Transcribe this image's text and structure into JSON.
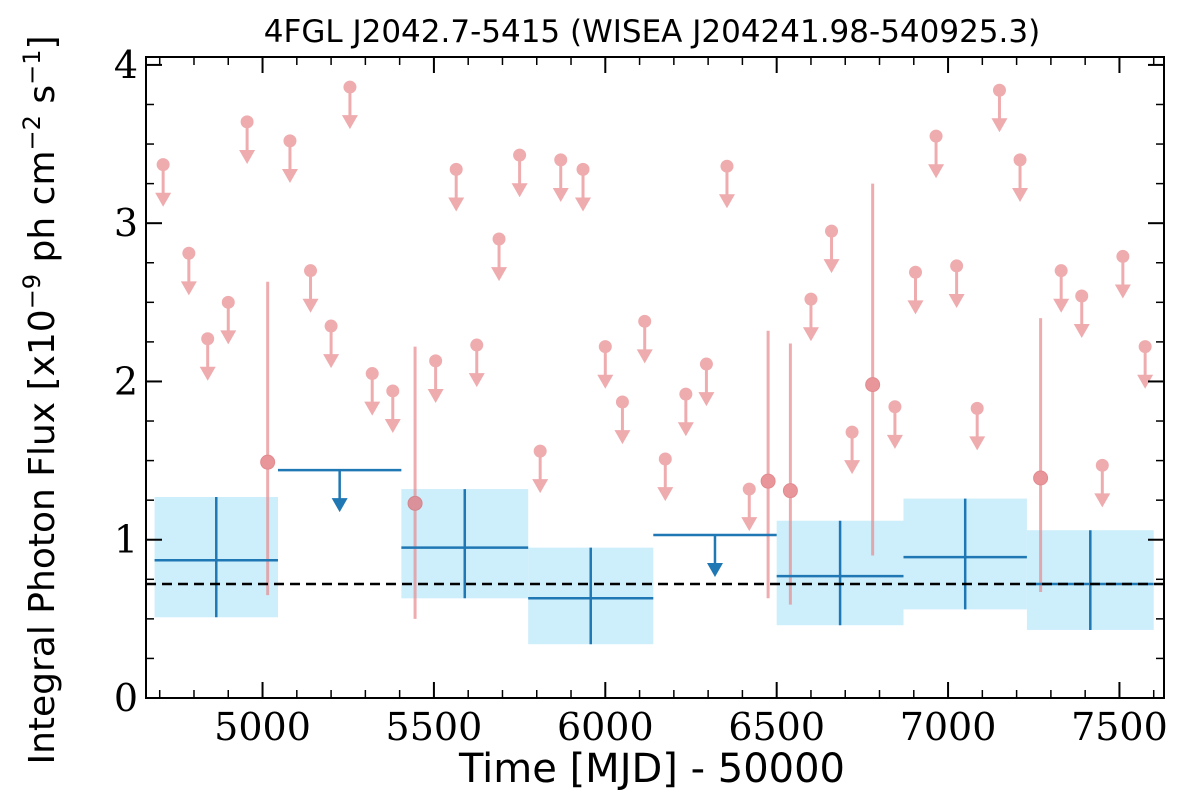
{
  "chart_data": {
    "type": "scatter",
    "title": "4FGL J2042.7-5415 (WISEA J204241.98-540925.3)",
    "xlabel": "Time [MJD] - 50000",
    "ylabel": "Integral Photon Flux [x10",
    "ylabel_exp": "−9",
    "ylabel_mid": " ph cm",
    "ylabel_exp2": "−2",
    "ylabel_end": " s",
    "ylabel_exp3": "−1",
    "ylabel_close": "]",
    "xlim": [
      4660,
      7630
    ],
    "ylim": [
      0,
      4.05
    ],
    "xticks": [
      5000,
      5500,
      6000,
      6500,
      7000,
      7500
    ],
    "yticks": [
      0,
      1,
      2,
      3,
      4
    ],
    "baseline_flux": 0.72,
    "colors": {
      "short_bins": "#e88a8e",
      "long_bins": "#1f77b4",
      "long_bins_band": "#cdeefb",
      "baseline": "#000000"
    },
    "short_bins": {
      "upper_limits": [
        {
          "x": 4710,
          "y": 3.37
        },
        {
          "x": 4785,
          "y": 2.81
        },
        {
          "x": 4840,
          "y": 2.27
        },
        {
          "x": 4900,
          "y": 2.5
        },
        {
          "x": 4955,
          "y": 3.64
        },
        {
          "x": 5080,
          "y": 3.52
        },
        {
          "x": 5140,
          "y": 2.7
        },
        {
          "x": 5200,
          "y": 2.35
        },
        {
          "x": 5255,
          "y": 3.86
        },
        {
          "x": 5320,
          "y": 2.05
        },
        {
          "x": 5380,
          "y": 1.94
        },
        {
          "x": 5505,
          "y": 2.13
        },
        {
          "x": 5565,
          "y": 3.34
        },
        {
          "x": 5625,
          "y": 2.23
        },
        {
          "x": 5690,
          "y": 2.9
        },
        {
          "x": 5750,
          "y": 3.43
        },
        {
          "x": 5810,
          "y": 1.56
        },
        {
          "x": 5870,
          "y": 3.4
        },
        {
          "x": 5935,
          "y": 3.34
        },
        {
          "x": 6000,
          "y": 2.22
        },
        {
          "x": 6050,
          "y": 1.87
        },
        {
          "x": 6115,
          "y": 2.38
        },
        {
          "x": 6175,
          "y": 1.51
        },
        {
          "x": 6235,
          "y": 1.92
        },
        {
          "x": 6295,
          "y": 2.11
        },
        {
          "x": 6355,
          "y": 3.36
        },
        {
          "x": 6420,
          "y": 1.32
        },
        {
          "x": 6600,
          "y": 2.52
        },
        {
          "x": 6660,
          "y": 2.95
        },
        {
          "x": 6720,
          "y": 1.68
        },
        {
          "x": 6845,
          "y": 1.84
        },
        {
          "x": 6905,
          "y": 2.69
        },
        {
          "x": 6965,
          "y": 3.55
        },
        {
          "x": 7025,
          "y": 2.73
        },
        {
          "x": 7085,
          "y": 1.83
        },
        {
          "x": 7150,
          "y": 3.84
        },
        {
          "x": 7210,
          "y": 3.4
        },
        {
          "x": 7330,
          "y": 2.7
        },
        {
          "x": 7390,
          "y": 2.54
        },
        {
          "x": 7450,
          "y": 1.47
        },
        {
          "x": 7510,
          "y": 2.79
        },
        {
          "x": 7575,
          "y": 2.22
        }
      ],
      "detections": [
        {
          "x": 5015,
          "y": 1.49,
          "ylo": 0.65,
          "yhi": 2.63
        },
        {
          "x": 5445,
          "y": 1.23,
          "ylo": 0.5,
          "yhi": 2.22
        },
        {
          "x": 6475,
          "y": 1.37,
          "ylo": 0.63,
          "yhi": 2.32
        },
        {
          "x": 6540,
          "y": 1.31,
          "ylo": 0.59,
          "yhi": 2.24
        },
        {
          "x": 6780,
          "y": 1.98,
          "ylo": 0.9,
          "yhi": 3.25
        },
        {
          "x": 7270,
          "y": 1.39,
          "ylo": 0.67,
          "yhi": 2.4
        }
      ]
    },
    "long_bins": {
      "detections": [
        {
          "x0": 4685,
          "x1": 5045,
          "y": 0.87,
          "ylo": 0.51,
          "yhi": 1.27
        },
        {
          "x0": 5405,
          "x1": 5775,
          "y": 0.95,
          "ylo": 0.63,
          "yhi": 1.32
        },
        {
          "x0": 5775,
          "x1": 6140,
          "y": 0.63,
          "ylo": 0.34,
          "yhi": 0.95
        },
        {
          "x0": 6500,
          "x1": 6870,
          "y": 0.77,
          "ylo": 0.46,
          "yhi": 1.12
        },
        {
          "x0": 6870,
          "x1": 7230,
          "y": 0.89,
          "ylo": 0.56,
          "yhi": 1.26
        },
        {
          "x0": 7230,
          "x1": 7600,
          "y": 0.72,
          "ylo": 0.43,
          "yhi": 1.06
        }
      ],
      "upper_limits": [
        {
          "x0": 5045,
          "x1": 5405,
          "y": 1.44
        },
        {
          "x0": 6140,
          "x1": 6500,
          "y": 1.03
        }
      ]
    }
  }
}
